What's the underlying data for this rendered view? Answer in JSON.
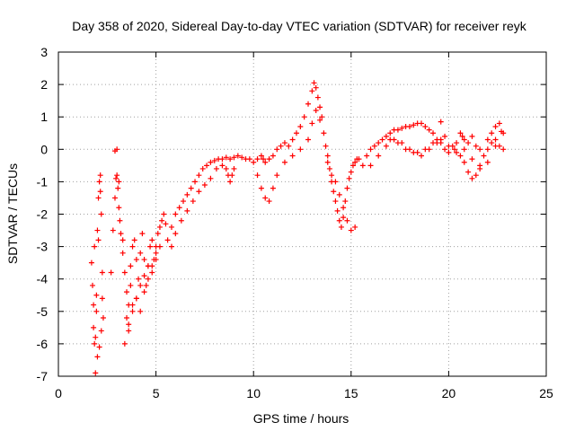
{
  "chart_data": {
    "type": "scatter",
    "title": "Day 358 of 2020, Sidereal Day-to-day VTEC variation (SDTVAR) for receiver reyk",
    "xlabel": "GPS time / hours",
    "ylabel": "SDTVAR / TECUs",
    "xlim": [
      0,
      25
    ],
    "ylim": [
      -7,
      3
    ],
    "xticks": [
      0,
      5,
      10,
      15,
      20,
      25
    ],
    "yticks": [
      -7,
      -6,
      -5,
      -4,
      -3,
      -2,
      -1,
      0,
      1,
      2,
      3
    ],
    "grid": true,
    "marker": "+",
    "colors": {
      "series": "#ff0000",
      "grid": "#a0a0a0",
      "frame": "#000000"
    },
    "series": [
      {
        "name": "SDTVAR",
        "x": [
          1.7,
          1.75,
          1.8,
          1.8,
          1.85,
          1.9,
          1.95,
          2.0,
          2.05,
          2.1,
          2.15,
          2.2,
          2.25,
          2.3,
          1.9,
          2.0,
          2.1,
          2.2,
          1.85,
          2.05,
          2.15,
          2.25,
          1.95,
          2.7,
          2.8,
          2.9,
          2.95,
          3.0,
          3.05,
          3.1,
          3.15,
          3.2,
          3.3,
          2.9,
          3.0,
          3.1,
          3.3,
          3.4,
          3.5,
          3.6,
          3.7,
          3.8,
          3.9,
          4.0,
          4.1,
          4.2,
          4.3,
          4.4,
          4.5,
          4.6,
          4.7,
          4.8,
          4.9,
          5.0,
          5.1,
          5.2,
          5.3,
          5.4,
          5.5,
          3.5,
          3.6,
          3.7,
          3.8,
          4.0,
          4.2,
          4.4,
          4.6,
          4.8,
          5.0,
          5.2,
          3.4,
          3.6,
          3.8,
          4.0,
          4.2,
          4.4,
          4.6,
          4.8,
          5.0,
          5.6,
          5.8,
          6.0,
          6.2,
          6.4,
          6.6,
          6.8,
          7.0,
          7.2,
          7.4,
          7.6,
          7.8,
          8.0,
          8.2,
          8.4,
          8.6,
          8.8,
          9.0,
          9.2,
          9.4,
          9.6,
          9.8,
          5.8,
          6.0,
          6.3,
          6.6,
          6.9,
          7.2,
          7.5,
          7.8,
          8.1,
          8.4,
          8.6,
          8.7,
          8.8,
          8.9,
          9.0,
          10.0,
          10.2,
          10.4,
          10.5,
          10.6,
          10.8,
          11.0,
          11.2,
          11.4,
          11.6,
          11.8,
          12.0,
          12.2,
          12.4,
          12.6,
          12.8,
          13.0,
          13.1,
          13.2,
          13.3,
          13.4,
          13.5,
          10.2,
          10.4,
          10.6,
          10.8,
          11.0,
          11.2,
          11.6,
          12.0,
          12.4,
          12.8,
          13.0,
          13.2,
          13.4,
          13.6,
          13.7,
          13.8,
          13.9,
          14.0,
          14.1,
          14.2,
          14.3,
          14.4,
          14.5,
          14.6,
          14.7,
          14.8,
          14.9,
          15.0,
          15.1,
          15.2,
          15.3,
          13.8,
          14.0,
          14.2,
          14.4,
          14.6,
          14.8,
          15.0,
          15.2,
          15.4,
          15.6,
          15.8,
          16.0,
          16.2,
          16.4,
          16.6,
          16.8,
          17.0,
          17.2,
          17.4,
          17.6,
          17.8,
          18.0,
          18.2,
          18.4,
          18.6,
          18.8,
          19.0,
          19.2,
          19.4,
          19.6,
          19.8,
          20.0,
          16.0,
          16.4,
          16.8,
          17.2,
          17.6,
          18.0,
          18.4,
          18.8,
          19.2,
          19.6,
          20.0,
          17.0,
          17.4,
          17.8,
          18.2,
          18.6,
          19.0,
          19.4,
          19.8,
          20.2,
          20.4,
          20.6,
          20.8,
          21.0,
          21.2,
          21.4,
          21.6,
          21.8,
          22.0,
          22.2,
          22.4,
          22.6,
          22.8,
          20.4,
          20.8,
          21.2,
          21.6,
          22.0,
          22.4,
          22.8,
          20.6,
          20.7,
          20.8,
          21.0,
          21.2,
          21.4,
          21.6,
          22.0,
          22.2,
          22.4,
          22.6,
          19.6,
          20.3,
          22.7
        ],
        "y": [
          -3.5,
          -4.2,
          -4.8,
          -5.5,
          -6.0,
          -5.8,
          -4.5,
          -2.5,
          -1.5,
          -1.0,
          -0.8,
          -2.0,
          -3.8,
          -5.2,
          -6.9,
          -6.4,
          -6.1,
          -5.6,
          -3.0,
          -2.8,
          -1.3,
          -4.6,
          -5.0,
          -3.8,
          -2.5,
          -1.5,
          -0.9,
          -0.8,
          -1.2,
          -1.8,
          -2.2,
          -2.6,
          -2.8,
          -0.05,
          0.0,
          -1.0,
          -3.2,
          -3.8,
          -4.4,
          -4.8,
          -3.6,
          -3.0,
          -2.8,
          -3.4,
          -4.0,
          -3.2,
          -2.6,
          -3.4,
          -4.2,
          -3.6,
          -3.0,
          -2.8,
          -3.4,
          -3.0,
          -2.6,
          -2.4,
          -2.2,
          -2.0,
          -2.3,
          -5.2,
          -5.6,
          -4.2,
          -4.8,
          -4.6,
          -5.0,
          -4.4,
          -4.0,
          -3.8,
          -3.4,
          -3.0,
          -6.0,
          -5.4,
          -5.0,
          -4.6,
          -4.2,
          -3.9,
          -3.6,
          -3.6,
          -3.2,
          -2.8,
          -2.4,
          -2.0,
          -1.8,
          -1.6,
          -1.4,
          -1.2,
          -1.0,
          -0.8,
          -0.6,
          -0.5,
          -0.4,
          -0.35,
          -0.3,
          -0.3,
          -0.25,
          -0.3,
          -0.25,
          -0.2,
          -0.25,
          -0.3,
          -0.3,
          -3.0,
          -2.6,
          -2.2,
          -1.9,
          -1.6,
          -1.3,
          -1.1,
          -0.9,
          -0.6,
          -0.5,
          -0.6,
          -0.8,
          -1.0,
          -0.8,
          -0.6,
          -0.4,
          -0.3,
          -0.2,
          -0.3,
          -0.4,
          -0.3,
          -0.2,
          0.0,
          0.1,
          0.2,
          0.1,
          0.3,
          0.5,
          0.7,
          1.0,
          1.4,
          1.8,
          2.05,
          1.9,
          1.6,
          1.3,
          1.0,
          -0.8,
          -1.2,
          -1.5,
          -1.6,
          -1.2,
          -0.8,
          -0.4,
          -0.2,
          0.0,
          0.3,
          0.8,
          1.2,
          0.9,
          0.5,
          0.1,
          -0.2,
          -0.6,
          -1.0,
          -1.3,
          -1.6,
          -1.9,
          -2.2,
          -2.4,
          -2.1,
          -1.6,
          -1.2,
          -0.9,
          -0.7,
          -0.5,
          -0.4,
          -0.3,
          -0.4,
          -0.8,
          -1.0,
          -1.4,
          -1.8,
          -2.2,
          -2.5,
          -2.4,
          -0.3,
          -0.5,
          -0.2,
          0.0,
          0.1,
          0.2,
          0.3,
          0.4,
          0.5,
          0.6,
          0.6,
          0.65,
          0.7,
          0.7,
          0.75,
          0.8,
          0.8,
          0.7,
          0.6,
          0.5,
          0.3,
          0.2,
          0.0,
          -0.1,
          -0.5,
          -0.2,
          0.1,
          0.3,
          0.2,
          0.0,
          -0.1,
          0.0,
          0.2,
          0.3,
          0.1,
          0.3,
          0.2,
          0.0,
          -0.1,
          -0.2,
          0.0,
          0.2,
          0.4,
          0.1,
          -0.1,
          -0.2,
          -0.4,
          -0.7,
          -0.9,
          -0.8,
          -0.5,
          -0.2,
          0.0,
          0.2,
          0.3,
          0.1,
          0.0,
          0.2,
          0.0,
          -0.3,
          -0.6,
          -0.4,
          0.1,
          0.5,
          0.5,
          0.4,
          0.3,
          0.2,
          0.4,
          0.1,
          0.0,
          0.3,
          0.5,
          0.7,
          0.8,
          0.85,
          0.0,
          0.55
        ]
      }
    ]
  }
}
